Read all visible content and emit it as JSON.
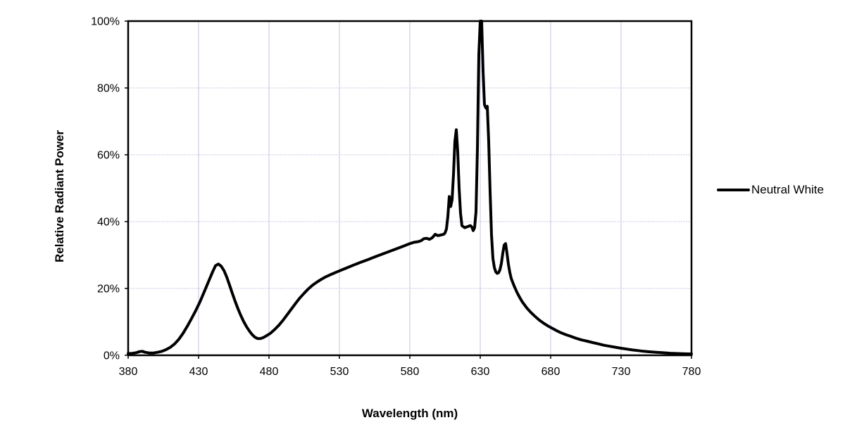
{
  "colors": {
    "background": "#ffffff",
    "gridline": "#c6c3e2",
    "axis": "#000000",
    "text": "#000000",
    "series": "#000000"
  },
  "chart_data": {
    "type": "line",
    "title": "",
    "xlabel": "Wavelength (nm)",
    "ylabel": "Relative Radiant Power",
    "xlim": [
      380,
      780
    ],
    "ylim": [
      0,
      100
    ],
    "x_ticks": [
      380,
      430,
      480,
      530,
      580,
      630,
      680,
      730,
      780
    ],
    "y_ticks": [
      0,
      20,
      40,
      60,
      80,
      100
    ],
    "y_tick_suffix": "%",
    "grid": "on",
    "legend": {
      "position": "right",
      "entries": [
        {
          "label": "Neutral White",
          "color": "#000000"
        }
      ]
    },
    "series": [
      {
        "name": "Neutral White",
        "color": "#000000",
        "points": [
          [
            380,
            0.5
          ],
          [
            383,
            0.6
          ],
          [
            386,
            0.8
          ],
          [
            388,
            1.1
          ],
          [
            390,
            1.2
          ],
          [
            392,
            0.9
          ],
          [
            395,
            0.7
          ],
          [
            398,
            0.7
          ],
          [
            401,
            0.9
          ],
          [
            404,
            1.2
          ],
          [
            407,
            1.7
          ],
          [
            410,
            2.4
          ],
          [
            413,
            3.4
          ],
          [
            416,
            4.8
          ],
          [
            419,
            6.6
          ],
          [
            422,
            8.7
          ],
          [
            425,
            11.0
          ],
          [
            428,
            13.4
          ],
          [
            431,
            16.0
          ],
          [
            434,
            19.0
          ],
          [
            437,
            22.0
          ],
          [
            440,
            25.0
          ],
          [
            442,
            26.8
          ],
          [
            444,
            27.3
          ],
          [
            446,
            26.7
          ],
          [
            448,
            25.4
          ],
          [
            450,
            23.4
          ],
          [
            452,
            21.0
          ],
          [
            454,
            18.5
          ],
          [
            456,
            16.1
          ],
          [
            458,
            13.9
          ],
          [
            460,
            11.9
          ],
          [
            462,
            10.1
          ],
          [
            464,
            8.6
          ],
          [
            466,
            7.3
          ],
          [
            468,
            6.2
          ],
          [
            470,
            5.4
          ],
          [
            472,
            5.0
          ],
          [
            474,
            5.0
          ],
          [
            476,
            5.3
          ],
          [
            478,
            5.8
          ],
          [
            481,
            6.6
          ],
          [
            484,
            7.7
          ],
          [
            487,
            9.0
          ],
          [
            490,
            10.5
          ],
          [
            493,
            12.2
          ],
          [
            496,
            13.9
          ],
          [
            499,
            15.6
          ],
          [
            502,
            17.2
          ],
          [
            505,
            18.6
          ],
          [
            508,
            19.9
          ],
          [
            511,
            21.0
          ],
          [
            514,
            21.9
          ],
          [
            517,
            22.7
          ],
          [
            520,
            23.4
          ],
          [
            524,
            24.2
          ],
          [
            528,
            24.9
          ],
          [
            532,
            25.6
          ],
          [
            536,
            26.3
          ],
          [
            540,
            27.0
          ],
          [
            545,
            27.8
          ],
          [
            550,
            28.6
          ],
          [
            555,
            29.4
          ],
          [
            560,
            30.2
          ],
          [
            565,
            31.0
          ],
          [
            570,
            31.8
          ],
          [
            575,
            32.6
          ],
          [
            580,
            33.4
          ],
          [
            583,
            33.8
          ],
          [
            586,
            34.0
          ],
          [
            588,
            34.3
          ],
          [
            590,
            34.9
          ],
          [
            592,
            35.0
          ],
          [
            594,
            34.7
          ],
          [
            596,
            35.2
          ],
          [
            598,
            36.2
          ],
          [
            600,
            35.8
          ],
          [
            602,
            36.0
          ],
          [
            604,
            36.2
          ],
          [
            605,
            36.6
          ],
          [
            606,
            37.8
          ],
          [
            607,
            41.5
          ],
          [
            608,
            47.5
          ],
          [
            609,
            44.5
          ],
          [
            610,
            46.5
          ],
          [
            611,
            54.0
          ],
          [
            612,
            64.0
          ],
          [
            613,
            67.5
          ],
          [
            614,
            61.0
          ],
          [
            615,
            50.0
          ],
          [
            616,
            42.5
          ],
          [
            617,
            38.8
          ],
          [
            619,
            38.2
          ],
          [
            621,
            38.5
          ],
          [
            623,
            38.8
          ],
          [
            624,
            38.4
          ],
          [
            625,
            37.3
          ],
          [
            626,
            38.2
          ],
          [
            627,
            43.0
          ],
          [
            628,
            62.0
          ],
          [
            629,
            90.0
          ],
          [
            630,
            100.0
          ],
          [
            631,
            100.0
          ],
          [
            632,
            85.0
          ],
          [
            633,
            75.0
          ],
          [
            634,
            74.0
          ],
          [
            635,
            74.5
          ],
          [
            636,
            64.0
          ],
          [
            637,
            49.0
          ],
          [
            638,
            36.0
          ],
          [
            639,
            29.0
          ],
          [
            640,
            26.3
          ],
          [
            641,
            25.0
          ],
          [
            642,
            24.5
          ],
          [
            643,
            24.7
          ],
          [
            644,
            25.6
          ],
          [
            645,
            27.5
          ],
          [
            646,
            30.5
          ],
          [
            647,
            33.0
          ],
          [
            648,
            33.4
          ],
          [
            649,
            30.5
          ],
          [
            650,
            27.2
          ],
          [
            651,
            24.8
          ],
          [
            652,
            23.0
          ],
          [
            654,
            20.8
          ],
          [
            656,
            18.9
          ],
          [
            658,
            17.3
          ],
          [
            660,
            15.9
          ],
          [
            663,
            14.2
          ],
          [
            666,
            12.8
          ],
          [
            669,
            11.6
          ],
          [
            672,
            10.5
          ],
          [
            675,
            9.6
          ],
          [
            678,
            8.8
          ],
          [
            681,
            8.1
          ],
          [
            684,
            7.4
          ],
          [
            687,
            6.8
          ],
          [
            690,
            6.3
          ],
          [
            694,
            5.7
          ],
          [
            698,
            5.1
          ],
          [
            702,
            4.6
          ],
          [
            706,
            4.2
          ],
          [
            710,
            3.8
          ],
          [
            714,
            3.4
          ],
          [
            718,
            3.0
          ],
          [
            722,
            2.7
          ],
          [
            726,
            2.4
          ],
          [
            730,
            2.1
          ],
          [
            734,
            1.85
          ],
          [
            738,
            1.6
          ],
          [
            742,
            1.4
          ],
          [
            746,
            1.2
          ],
          [
            750,
            1.05
          ],
          [
            755,
            0.9
          ],
          [
            760,
            0.75
          ],
          [
            765,
            0.62
          ],
          [
            770,
            0.52
          ],
          [
            775,
            0.45
          ],
          [
            780,
            0.4
          ]
        ]
      }
    ]
  }
}
